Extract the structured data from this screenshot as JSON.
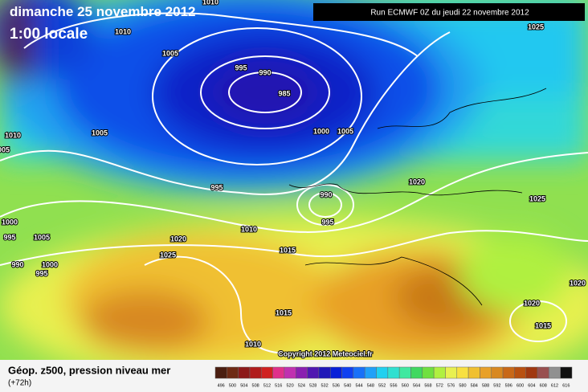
{
  "header": {
    "date": "dimanche 25 novembre 2012",
    "time": "1:00 locale",
    "run": "Run ECMWF 0Z du jeudi 22 novembre 2012"
  },
  "map": {
    "isobar_labels": [
      "1010",
      "1010",
      "1005",
      "995",
      "990",
      "985",
      "1005",
      "1010",
      "1005",
      "1000",
      "1005",
      "995",
      "1020",
      "990",
      "995",
      "1025",
      "1025",
      "1000",
      "995",
      "1005",
      "1020",
      "1010",
      "1015",
      "1025",
      "990",
      "1000",
      "995",
      "1020",
      "1015",
      "1020",
      "1015",
      "1010"
    ],
    "copyright": "Copyright 2012 Meteociel.fr"
  },
  "footer": {
    "title": "Géop. z500, pression niveau mer",
    "lead": "(+72h)",
    "scale": {
      "labels": [
        496,
        500,
        504,
        508,
        512,
        516,
        520,
        524,
        528,
        532,
        536,
        540,
        544,
        548,
        552,
        556,
        560,
        564,
        568,
        572,
        576,
        580,
        584,
        588,
        592,
        596,
        600,
        604,
        608,
        612,
        616
      ],
      "colors": [
        "#4a1e10",
        "#6e2a14",
        "#8c1a1a",
        "#b01c1c",
        "#d02020",
        "#e0308a",
        "#c030b0",
        "#8a1fb0",
        "#5018b0",
        "#2018b8",
        "#0820d8",
        "#1040f0",
        "#1870f8",
        "#20a0f8",
        "#20d0f0",
        "#30e0d0",
        "#40e8a0",
        "#40d860",
        "#70e040",
        "#b0f040",
        "#e8f050",
        "#f8e040",
        "#f0c030",
        "#e8a028",
        "#d88820",
        "#c86818",
        "#b85010",
        "#a03810",
        "#985050",
        "#909090",
        "#101010"
      ]
    }
  }
}
